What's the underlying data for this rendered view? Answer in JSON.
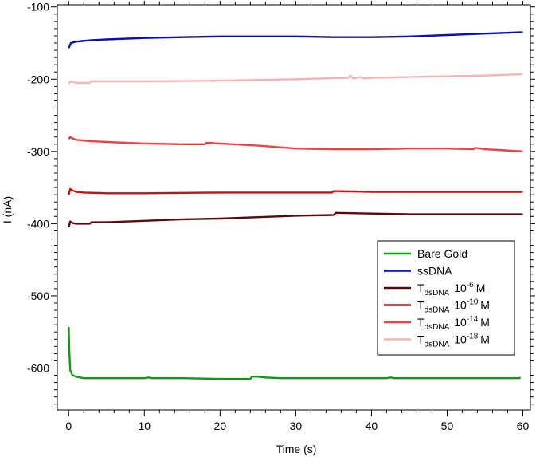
{
  "chart_data": {
    "type": "line",
    "xlabel": "Time (s)",
    "ylabel": "I (nA)",
    "xlim": [
      -1.5,
      61
    ],
    "ylim": [
      -658,
      -97
    ],
    "x_ticks": [
      0,
      10,
      20,
      30,
      40,
      50,
      60
    ],
    "y_ticks": [
      -600,
      -500,
      -400,
      -300,
      -200,
      -100
    ],
    "grid": false,
    "legend_position": "bottom-right",
    "series": [
      {
        "name": "Bare Gold",
        "color": "#109a10",
        "points": [
          [
            0,
            -543
          ],
          [
            0.1,
            -580
          ],
          [
            0.2,
            -603
          ],
          [
            0.5,
            -610
          ],
          [
            1,
            -612
          ],
          [
            2,
            -614
          ],
          [
            5,
            -614
          ],
          [
            10,
            -614
          ],
          [
            10.5,
            -613
          ],
          [
            11,
            -614
          ],
          [
            15,
            -614
          ],
          [
            20,
            -615
          ],
          [
            24,
            -615
          ],
          [
            24.2,
            -612
          ],
          [
            25,
            -612
          ],
          [
            26,
            -613
          ],
          [
            28,
            -614
          ],
          [
            35,
            -614
          ],
          [
            42,
            -614
          ],
          [
            42.5,
            -613
          ],
          [
            43,
            -614
          ],
          [
            50,
            -614
          ],
          [
            59.5,
            -614
          ],
          [
            59.7,
            -613
          ]
        ]
      },
      {
        "name": "ssDNA",
        "color": "#0a10b4",
        "points": [
          [
            0,
            -157
          ],
          [
            0.3,
            -150
          ],
          [
            1,
            -148
          ],
          [
            3,
            -146
          ],
          [
            5,
            -145
          ],
          [
            10,
            -143
          ],
          [
            15,
            -142
          ],
          [
            20,
            -141
          ],
          [
            25,
            -141
          ],
          [
            30,
            -141
          ],
          [
            35,
            -142
          ],
          [
            40,
            -142
          ],
          [
            45,
            -141
          ],
          [
            50,
            -139
          ],
          [
            55,
            -137
          ],
          [
            60,
            -135
          ]
        ]
      },
      {
        "name": "T<sub>dsDNA</sub> 10<sup>-6</sup> M",
        "label_main": "T",
        "label_sub": "dsDNA",
        "label_base": "10",
        "label_exp": "-6",
        "label_unit": "M",
        "color": "#5a0a0a",
        "points": [
          [
            0,
            -405
          ],
          [
            0.2,
            -397
          ],
          [
            0.5,
            -399
          ],
          [
            1,
            -400
          ],
          [
            2.8,
            -400
          ],
          [
            3,
            -398
          ],
          [
            5,
            -398
          ],
          [
            10,
            -396
          ],
          [
            15,
            -394
          ],
          [
            20,
            -393
          ],
          [
            25,
            -391
          ],
          [
            30,
            -389
          ],
          [
            35,
            -388
          ],
          [
            35.3,
            -385
          ],
          [
            40,
            -386
          ],
          [
            45,
            -387
          ],
          [
            50,
            -387
          ],
          [
            55,
            -387
          ],
          [
            60,
            -387
          ]
        ]
      },
      {
        "name": "T<sub>dsDNA</sub> 10<sup>-10</sup> M",
        "label_main": "T",
        "label_sub": "dsDNA",
        "label_base": "10",
        "label_exp": "-10",
        "label_unit": "M",
        "color": "#c41414",
        "points": [
          [
            0,
            -360
          ],
          [
            0.2,
            -352
          ],
          [
            0.5,
            -354
          ],
          [
            1,
            -356
          ],
          [
            2,
            -357
          ],
          [
            5,
            -358
          ],
          [
            10,
            -358
          ],
          [
            20,
            -357
          ],
          [
            30,
            -357
          ],
          [
            34.8,
            -357
          ],
          [
            35,
            -355
          ],
          [
            40,
            -356
          ],
          [
            45,
            -356
          ],
          [
            50,
            -356
          ],
          [
            55,
            -356
          ],
          [
            60,
            -356
          ]
        ]
      },
      {
        "name": "T<sub>dsDNA</sub> 10<sup>-14</sup> M",
        "label_main": "T",
        "label_sub": "dsDNA",
        "label_base": "10",
        "label_exp": "-14",
        "label_unit": "M",
        "color": "#f04040",
        "points": [
          [
            0,
            -283
          ],
          [
            0.2,
            -280
          ],
          [
            0.5,
            -282
          ],
          [
            1,
            -284
          ],
          [
            3,
            -286
          ],
          [
            5,
            -287
          ],
          [
            10,
            -289
          ],
          [
            15,
            -290
          ],
          [
            18,
            -290
          ],
          [
            18.2,
            -288
          ],
          [
            20,
            -289
          ],
          [
            25,
            -292
          ],
          [
            30,
            -296
          ],
          [
            35,
            -297
          ],
          [
            40,
            -297
          ],
          [
            45,
            -296
          ],
          [
            50,
            -296
          ],
          [
            53.5,
            -297
          ],
          [
            53.7,
            -295
          ],
          [
            55,
            -297
          ],
          [
            60,
            -300
          ]
        ]
      },
      {
        "name": "T<sub>dsDNA</sub> 10<sup>-18</sup> M",
        "label_main": "T",
        "label_sub": "dsDNA",
        "label_base": "10",
        "label_exp": "-18",
        "label_unit": "M",
        "color": "#f8b4b4",
        "points": [
          [
            0,
            -206
          ],
          [
            0.3,
            -203
          ],
          [
            1,
            -205
          ],
          [
            2.8,
            -205
          ],
          [
            3,
            -203
          ],
          [
            5,
            -203
          ],
          [
            10,
            -203
          ],
          [
            20,
            -202
          ],
          [
            30,
            -200
          ],
          [
            37,
            -198
          ],
          [
            37.2,
            -195
          ],
          [
            37.6,
            -199
          ],
          [
            38.5,
            -197
          ],
          [
            39,
            -199
          ],
          [
            40,
            -198
          ],
          [
            45,
            -197
          ],
          [
            50,
            -196
          ],
          [
            55,
            -195
          ],
          [
            60,
            -193
          ]
        ]
      }
    ]
  }
}
